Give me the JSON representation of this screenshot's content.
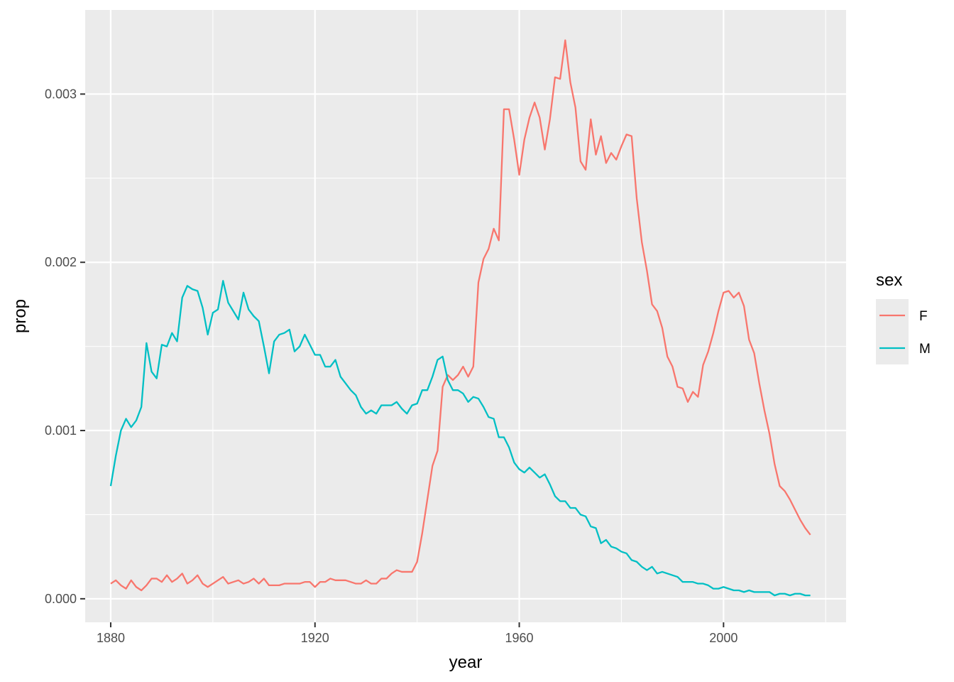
{
  "chart_data": {
    "type": "line",
    "xlabel": "year",
    "ylabel": "prop",
    "xlim": [
      1875,
      2024
    ],
    "ylim": [
      -0.00014,
      0.0035
    ],
    "x_ticks": [
      1880,
      1920,
      1960,
      2000
    ],
    "x_tick_labels": [
      "1880",
      "1920",
      "1960",
      "2000"
    ],
    "y_ticks": [
      0,
      0.001,
      0.002,
      0.003
    ],
    "y_tick_labels": [
      "0.000",
      "0.001",
      "0.002",
      "0.003"
    ],
    "grid": true,
    "legend": {
      "title": "sex",
      "placement": "right"
    },
    "series": [
      {
        "name": "F",
        "color": "#F8766D",
        "points": [
          [
            1880,
            9e-05
          ],
          [
            1881,
            0.00011
          ],
          [
            1882,
            8e-05
          ],
          [
            1883,
            6e-05
          ],
          [
            1884,
            0.00011
          ],
          [
            1885,
            7e-05
          ],
          [
            1886,
            5e-05
          ],
          [
            1887,
            8e-05
          ],
          [
            1888,
            0.00012
          ],
          [
            1889,
            0.00012
          ],
          [
            1890,
            0.0001
          ],
          [
            1891,
            0.00014
          ],
          [
            1892,
            0.0001
          ],
          [
            1893,
            0.00012
          ],
          [
            1894,
            0.00015
          ],
          [
            1895,
            9e-05
          ],
          [
            1896,
            0.00011
          ],
          [
            1897,
            0.00014
          ],
          [
            1898,
            9e-05
          ],
          [
            1899,
            7e-05
          ],
          [
            1900,
            9e-05
          ],
          [
            1901,
            0.00011
          ],
          [
            1902,
            0.00013
          ],
          [
            1903,
            9e-05
          ],
          [
            1904,
            0.0001
          ],
          [
            1905,
            0.00011
          ],
          [
            1906,
            9e-05
          ],
          [
            1907,
            0.0001
          ],
          [
            1908,
            0.00012
          ],
          [
            1909,
            9e-05
          ],
          [
            1910,
            0.00012
          ],
          [
            1911,
            8e-05
          ],
          [
            1912,
            8e-05
          ],
          [
            1913,
            8e-05
          ],
          [
            1914,
            9e-05
          ],
          [
            1915,
            9e-05
          ],
          [
            1916,
            9e-05
          ],
          [
            1917,
            9e-05
          ],
          [
            1918,
            0.0001
          ],
          [
            1919,
            0.0001
          ],
          [
            1920,
            7e-05
          ],
          [
            1921,
            0.0001
          ],
          [
            1922,
            0.0001
          ],
          [
            1923,
            0.00012
          ],
          [
            1924,
            0.00011
          ],
          [
            1925,
            0.00011
          ],
          [
            1926,
            0.00011
          ],
          [
            1927,
            0.0001
          ],
          [
            1928,
            9e-05
          ],
          [
            1929,
            9e-05
          ],
          [
            1930,
            0.00011
          ],
          [
            1931,
            9e-05
          ],
          [
            1932,
            9e-05
          ],
          [
            1933,
            0.00012
          ],
          [
            1934,
            0.00012
          ],
          [
            1935,
            0.00015
          ],
          [
            1936,
            0.00017
          ],
          [
            1937,
            0.00016
          ],
          [
            1938,
            0.00016
          ],
          [
            1939,
            0.00016
          ],
          [
            1940,
            0.00022
          ],
          [
            1941,
            0.00039
          ],
          [
            1942,
            0.00059
          ],
          [
            1943,
            0.00079
          ],
          [
            1944,
            0.00088
          ],
          [
            1945,
            0.00126
          ],
          [
            1946,
            0.00133
          ],
          [
            1947,
            0.0013
          ],
          [
            1948,
            0.00133
          ],
          [
            1949,
            0.00138
          ],
          [
            1950,
            0.00132
          ],
          [
            1951,
            0.00138
          ],
          [
            1952,
            0.00188
          ],
          [
            1953,
            0.00202
          ],
          [
            1954,
            0.00208
          ],
          [
            1955,
            0.0022
          ],
          [
            1956,
            0.00213
          ],
          [
            1957,
            0.00291
          ],
          [
            1958,
            0.00291
          ],
          [
            1959,
            0.00273
          ],
          [
            1960,
            0.00252
          ],
          [
            1961,
            0.00273
          ],
          [
            1962,
            0.00286
          ],
          [
            1963,
            0.00295
          ],
          [
            1964,
            0.00286
          ],
          [
            1965,
            0.00267
          ],
          [
            1966,
            0.00285
          ],
          [
            1967,
            0.0031
          ],
          [
            1968,
            0.00309
          ],
          [
            1969,
            0.00332
          ],
          [
            1970,
            0.00307
          ],
          [
            1971,
            0.00292
          ],
          [
            1972,
            0.0026
          ],
          [
            1973,
            0.00255
          ],
          [
            1974,
            0.00285
          ],
          [
            1975,
            0.00264
          ],
          [
            1976,
            0.00275
          ],
          [
            1977,
            0.00259
          ],
          [
            1978,
            0.00265
          ],
          [
            1979,
            0.00261
          ],
          [
            1980,
            0.00269
          ],
          [
            1981,
            0.00276
          ],
          [
            1982,
            0.00275
          ],
          [
            1983,
            0.00238
          ],
          [
            1984,
            0.00212
          ],
          [
            1985,
            0.00195
          ],
          [
            1986,
            0.00175
          ],
          [
            1987,
            0.00171
          ],
          [
            1988,
            0.00161
          ],
          [
            1989,
            0.00144
          ],
          [
            1990,
            0.00138
          ],
          [
            1991,
            0.00126
          ],
          [
            1992,
            0.00125
          ],
          [
            1993,
            0.00117
          ],
          [
            1994,
            0.00123
          ],
          [
            1995,
            0.0012
          ],
          [
            1996,
            0.00139
          ],
          [
            1997,
            0.00147
          ],
          [
            1998,
            0.00158
          ],
          [
            1999,
            0.00171
          ],
          [
            2000,
            0.00182
          ],
          [
            2001,
            0.00183
          ],
          [
            2002,
            0.00179
          ],
          [
            2003,
            0.00182
          ],
          [
            2004,
            0.00174
          ],
          [
            2005,
            0.00154
          ],
          [
            2006,
            0.00146
          ],
          [
            2007,
            0.00128
          ],
          [
            2008,
            0.00112
          ],
          [
            2009,
            0.00098
          ],
          [
            2010,
            0.0008
          ],
          [
            2011,
            0.00067
          ],
          [
            2012,
            0.00064
          ],
          [
            2013,
            0.00059
          ],
          [
            2014,
            0.00053
          ],
          [
            2015,
            0.00047
          ],
          [
            2016,
            0.00042
          ],
          [
            2017,
            0.00038
          ]
        ]
      },
      {
        "name": "M",
        "color": "#00BFC4",
        "points": [
          [
            1880,
            0.00067
          ],
          [
            1881,
            0.00085
          ],
          [
            1882,
            0.001
          ],
          [
            1883,
            0.00107
          ],
          [
            1884,
            0.00102
          ],
          [
            1885,
            0.00106
          ],
          [
            1886,
            0.00114
          ],
          [
            1887,
            0.00152
          ],
          [
            1888,
            0.00135
          ],
          [
            1889,
            0.00131
          ],
          [
            1890,
            0.00151
          ],
          [
            1891,
            0.0015
          ],
          [
            1892,
            0.00158
          ],
          [
            1893,
            0.00153
          ],
          [
            1894,
            0.00179
          ],
          [
            1895,
            0.00186
          ],
          [
            1896,
            0.00184
          ],
          [
            1897,
            0.00183
          ],
          [
            1898,
            0.00173
          ],
          [
            1899,
            0.00157
          ],
          [
            1900,
            0.0017
          ],
          [
            1901,
            0.00172
          ],
          [
            1902,
            0.00189
          ],
          [
            1903,
            0.00176
          ],
          [
            1904,
            0.00171
          ],
          [
            1905,
            0.00166
          ],
          [
            1906,
            0.00182
          ],
          [
            1907,
            0.00172
          ],
          [
            1908,
            0.00168
          ],
          [
            1909,
            0.00165
          ],
          [
            1910,
            0.0015
          ],
          [
            1911,
            0.00134
          ],
          [
            1912,
            0.00153
          ],
          [
            1913,
            0.00157
          ],
          [
            1914,
            0.00158
          ],
          [
            1915,
            0.0016
          ],
          [
            1916,
            0.00147
          ],
          [
            1917,
            0.0015
          ],
          [
            1918,
            0.00157
          ],
          [
            1919,
            0.00151
          ],
          [
            1920,
            0.00145
          ],
          [
            1921,
            0.00145
          ],
          [
            1922,
            0.00138
          ],
          [
            1923,
            0.00138
          ],
          [
            1924,
            0.00142
          ],
          [
            1925,
            0.00132
          ],
          [
            1926,
            0.00128
          ],
          [
            1927,
            0.00124
          ],
          [
            1928,
            0.00121
          ],
          [
            1929,
            0.00114
          ],
          [
            1930,
            0.0011
          ],
          [
            1931,
            0.00112
          ],
          [
            1932,
            0.0011
          ],
          [
            1933,
            0.00115
          ],
          [
            1934,
            0.00115
          ],
          [
            1935,
            0.00115
          ],
          [
            1936,
            0.00117
          ],
          [
            1937,
            0.00113
          ],
          [
            1938,
            0.0011
          ],
          [
            1939,
            0.00115
          ],
          [
            1940,
            0.00116
          ],
          [
            1941,
            0.00124
          ],
          [
            1942,
            0.00124
          ],
          [
            1943,
            0.00132
          ],
          [
            1944,
            0.00142
          ],
          [
            1945,
            0.00144
          ],
          [
            1946,
            0.0013
          ],
          [
            1947,
            0.00124
          ],
          [
            1948,
            0.00124
          ],
          [
            1949,
            0.00122
          ],
          [
            1950,
            0.00117
          ],
          [
            1951,
            0.0012
          ],
          [
            1952,
            0.00119
          ],
          [
            1953,
            0.00114
          ],
          [
            1954,
            0.00108
          ],
          [
            1955,
            0.00107
          ],
          [
            1956,
            0.00096
          ],
          [
            1957,
            0.00096
          ],
          [
            1958,
            0.0009
          ],
          [
            1959,
            0.00081
          ],
          [
            1960,
            0.00077
          ],
          [
            1961,
            0.00075
          ],
          [
            1962,
            0.00078
          ],
          [
            1963,
            0.00075
          ],
          [
            1964,
            0.00072
          ],
          [
            1965,
            0.00074
          ],
          [
            1966,
            0.00068
          ],
          [
            1967,
            0.00061
          ],
          [
            1968,
            0.00058
          ],
          [
            1969,
            0.00058
          ],
          [
            1970,
            0.00054
          ],
          [
            1971,
            0.00054
          ],
          [
            1972,
            0.0005
          ],
          [
            1973,
            0.00049
          ],
          [
            1974,
            0.00043
          ],
          [
            1975,
            0.00042
          ],
          [
            1976,
            0.00033
          ],
          [
            1977,
            0.00035
          ],
          [
            1978,
            0.00031
          ],
          [
            1979,
            0.0003
          ],
          [
            1980,
            0.00028
          ],
          [
            1981,
            0.00027
          ],
          [
            1982,
            0.00023
          ],
          [
            1983,
            0.00022
          ],
          [
            1984,
            0.00019
          ],
          [
            1985,
            0.00017
          ],
          [
            1986,
            0.00019
          ],
          [
            1987,
            0.00015
          ],
          [
            1988,
            0.00016
          ],
          [
            1989,
            0.00015
          ],
          [
            1990,
            0.00014
          ],
          [
            1991,
            0.00013
          ],
          [
            1992,
            0.0001
          ],
          [
            1993,
            0.0001
          ],
          [
            1994,
            0.0001
          ],
          [
            1995,
            9e-05
          ],
          [
            1996,
            9e-05
          ],
          [
            1997,
            8e-05
          ],
          [
            1998,
            6e-05
          ],
          [
            1999,
            6e-05
          ],
          [
            2000,
            7e-05
          ],
          [
            2001,
            6e-05
          ],
          [
            2002,
            5e-05
          ],
          [
            2003,
            5e-05
          ],
          [
            2004,
            4e-05
          ],
          [
            2005,
            5e-05
          ],
          [
            2006,
            4e-05
          ],
          [
            2007,
            4e-05
          ],
          [
            2008,
            4e-05
          ],
          [
            2009,
            4e-05
          ],
          [
            2010,
            2e-05
          ],
          [
            2011,
            3e-05
          ],
          [
            2012,
            3e-05
          ],
          [
            2013,
            2e-05
          ],
          [
            2014,
            3e-05
          ],
          [
            2015,
            3e-05
          ],
          [
            2016,
            2e-05
          ],
          [
            2017,
            2e-05
          ]
        ]
      }
    ]
  }
}
